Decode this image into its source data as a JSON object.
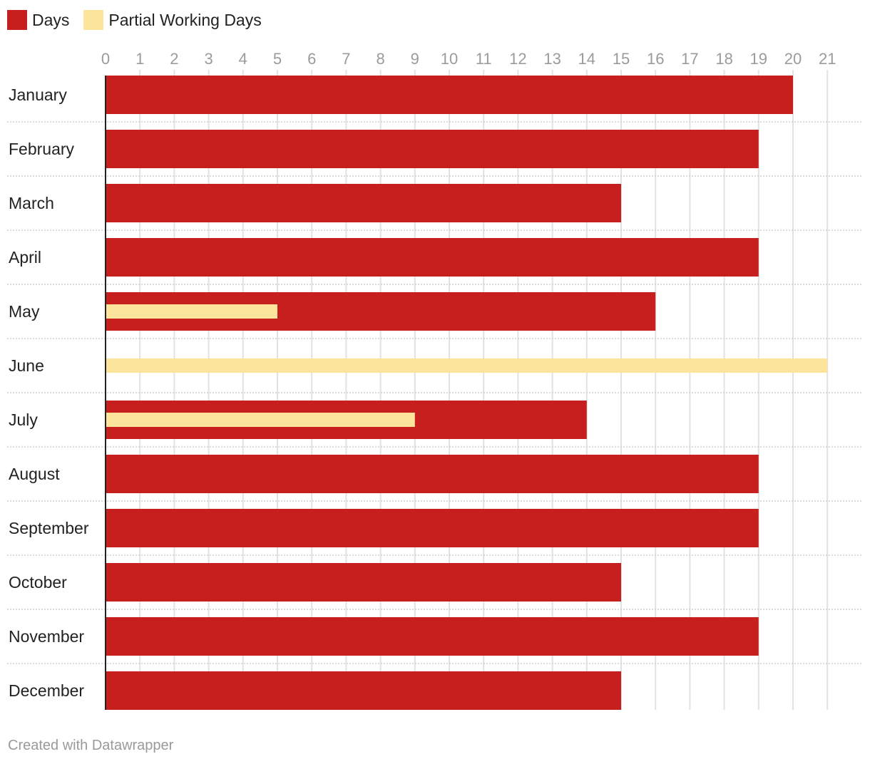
{
  "chart_data": {
    "type": "bar",
    "orientation": "horizontal",
    "title": "",
    "xlabel": "",
    "ylabel": "",
    "xlim": [
      0,
      21
    ],
    "ticks": [
      0,
      1,
      2,
      3,
      4,
      5,
      6,
      7,
      8,
      9,
      10,
      11,
      12,
      13,
      14,
      15,
      16,
      17,
      18,
      19,
      20,
      21
    ],
    "categories": [
      "January",
      "February",
      "March",
      "April",
      "May",
      "June",
      "July",
      "August",
      "September",
      "October",
      "November",
      "December"
    ],
    "series": [
      {
        "name": "Days",
        "color": "#c71e1e",
        "values": [
          20,
          19,
          15,
          19,
          16,
          0,
          14,
          19,
          19,
          15,
          19,
          15
        ]
      },
      {
        "name": "Partial Working Days",
        "color": "#fde49c",
        "values": [
          0,
          0,
          0,
          0,
          5,
          21,
          9,
          0,
          0,
          0,
          0,
          0
        ]
      }
    ],
    "legend_position": "top-left",
    "grid": true
  },
  "footer": {
    "credit": "Created with Datawrapper"
  }
}
